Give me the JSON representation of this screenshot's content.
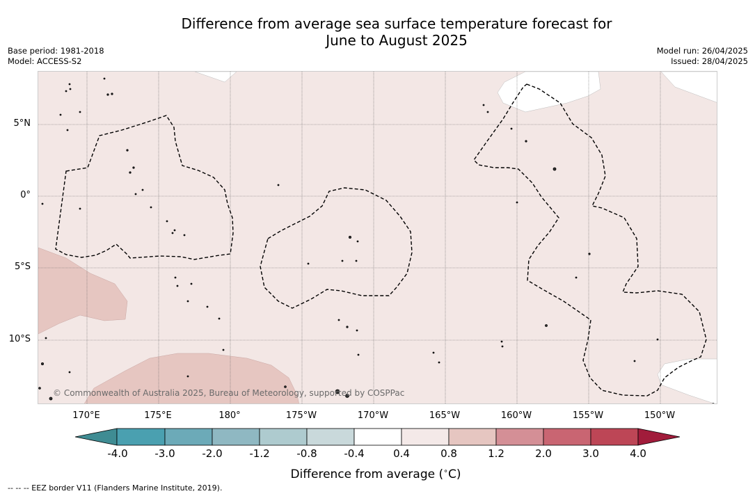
{
  "title_line1": "Difference from average sea surface temperature forecast for",
  "title_line2": "June to August 2025",
  "meta_left": {
    "base_period": "Base period: 1981-2018",
    "model": "Model: ACCESS-S2"
  },
  "meta_right": {
    "model_run": "Model run: 26/04/2025",
    "issued": "Issued: 28/04/2025"
  },
  "map": {
    "lat_labels": [
      "5°N",
      "0°",
      "5°S",
      "10°S"
    ],
    "lon_labels": [
      "170°E",
      "175°E",
      "180°",
      "175°W",
      "170°W",
      "165°W",
      "160°W",
      "155°W",
      "150°W"
    ],
    "copyright": "© Commonwealth of Australia 2025, Bureau of Meteorology, supported by COSPPac",
    "background_color": "#f3e7e5",
    "warm_patch_color": "#e6c6c1",
    "land_color": "#ffffff"
  },
  "colorbar": {
    "colors": [
      "#3f8c93",
      "#4aa0b0",
      "#6caab8",
      "#8fb8c2",
      "#aecbcf",
      "#c9d9db",
      "#ffffff",
      "#f4e9e8",
      "#e6c6c1",
      "#d48f96",
      "#c96572",
      "#bd4656",
      "#a11c3b"
    ],
    "ticks": [
      "-4.0",
      "-3.0",
      "-2.0",
      "-1.2",
      "-0.8",
      "-0.4",
      "0.4",
      "0.8",
      "1.2",
      "2.0",
      "3.0",
      "4.0"
    ],
    "label": "Difference from average ( C)",
    "degree_symbol": "∘"
  },
  "footnote": "-- -- -- EEZ border V11 (Flanders Marine Institute, 2019)."
}
